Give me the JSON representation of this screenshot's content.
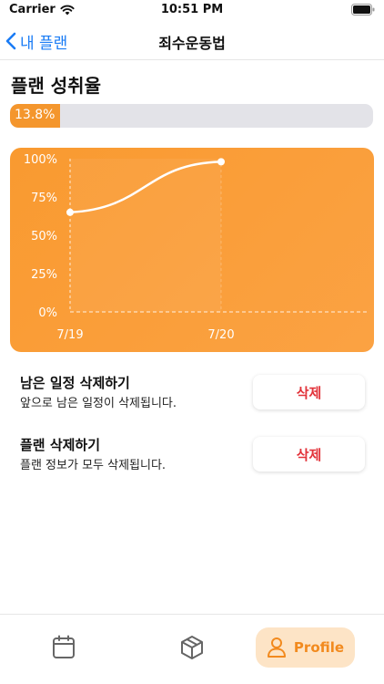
{
  "status_bar": {
    "carrier": "Carrier",
    "time": "10:51 PM"
  },
  "nav": {
    "back_label": "내 플랜",
    "title": "죄수운동법"
  },
  "section": {
    "title": "플랜 성취율"
  },
  "progress": {
    "label": "13.8%",
    "value": 0.138
  },
  "chart_data": {
    "type": "area",
    "x": [
      "7/19",
      "7/20"
    ],
    "values": [
      65,
      98
    ],
    "ylim": [
      0,
      100
    ],
    "yticks": [
      "100%",
      "75%",
      "50%",
      "25%",
      "0%"
    ],
    "xticks": [
      "7/19",
      "7/20"
    ],
    "grid": true,
    "colors": {
      "background": "#f99a30",
      "line": "#ffffff"
    }
  },
  "actions": [
    {
      "title": "남은 일정 삭제하기",
      "description": "앞으로 남은 일정이 삭제됩니다.",
      "button": "삭제"
    },
    {
      "title": "플랜 삭제하기",
      "description": "플랜 정보가 모두 삭제됩니다.",
      "button": "삭제"
    }
  ],
  "tab_bar": {
    "items": [
      {
        "icon": "calendar-icon"
      },
      {
        "icon": "box-icon"
      },
      {
        "icon": "person-icon",
        "label": "Profile",
        "selected": true
      }
    ]
  },
  "colors": {
    "accent": "#f4962d",
    "link": "#1a7cf5",
    "danger": "#e2333a"
  }
}
